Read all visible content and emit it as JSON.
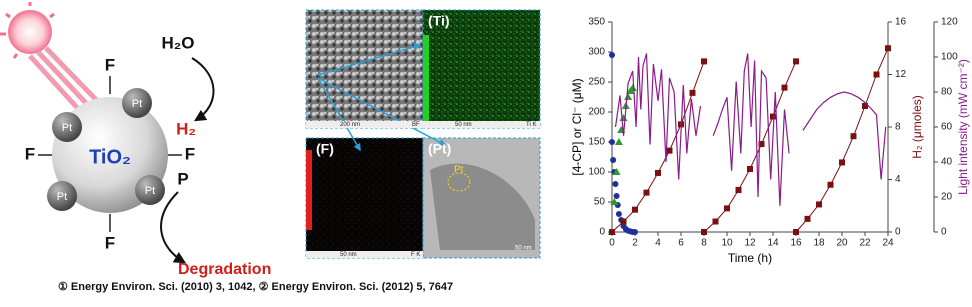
{
  "diagram": {
    "water": "H₂O",
    "hydrogen": "H₂",
    "catalyst": "TiO₂",
    "fluorine": [
      "F",
      "F",
      "F",
      "F"
    ],
    "platinum": [
      "Pt",
      "Pt",
      "Pt",
      "Pt"
    ],
    "pollutant": "P",
    "product": "Degradation"
  },
  "micrographs": {
    "ti_label": "(Ti)",
    "f_label": "(F)",
    "pt_label": "(Pt)",
    "pt_marker": "Pt",
    "bf_scale": "200 nm",
    "bf_tag": "BF",
    "ti_scale": "50 nm",
    "ti_tag": "Ti K",
    "f_scale": "50 nm",
    "f_tag": "F K",
    "pt_scale": "50 nm"
  },
  "chart_data": {
    "type": "line",
    "xlabel": "Time (h)",
    "ylabel": "[4-CP] or Cl⁻ (μM)",
    "y2label": "H₂ (μmoles)",
    "y3label": "Light intensity (mW cm⁻²)",
    "xlim": [
      0,
      24
    ],
    "xticks": [
      0,
      2,
      4,
      6,
      8,
      10,
      12,
      14,
      16,
      18,
      20,
      22,
      24
    ],
    "ylim": [
      0,
      350
    ],
    "yticks": [
      0,
      50,
      100,
      150,
      200,
      250,
      300,
      350
    ],
    "y2lim": [
      0,
      16
    ],
    "y2ticks": [
      0,
      4,
      8,
      12,
      16
    ],
    "y3lim": [
      0,
      120
    ],
    "y3ticks": [
      0,
      20,
      40,
      60,
      80,
      100,
      120
    ],
    "series": [
      {
        "color": "#1f2f9f",
        "marker": "circle",
        "axis": "y",
        "x": [
          0,
          0,
          0.1,
          0.2,
          0.3,
          0.4,
          0.5,
          0.6,
          0.8,
          1,
          1.2,
          1.4,
          1.6,
          1.8,
          2
        ],
        "values": [
          295,
          150,
          120,
          100,
          80,
          60,
          45,
          30,
          20,
          10,
          5,
          2,
          1,
          0,
          0
        ]
      },
      {
        "color": "#2e9a2e",
        "marker": "triangle",
        "axis": "y",
        "x": [
          0,
          0.2,
          0.4,
          0.6,
          0.8,
          1,
          1.2,
          1.4,
          1.6,
          1.8
        ],
        "values": [
          0,
          50,
          100,
          150,
          170,
          190,
          210,
          225,
          235,
          240
        ]
      },
      {
        "color": "#7a1010",
        "marker": "square",
        "axis": "y2",
        "x": [
          0,
          1,
          2,
          3,
          4,
          5,
          6,
          7,
          8,
          8,
          8,
          9,
          10,
          11,
          12,
          13,
          14,
          15,
          16,
          16,
          16,
          17,
          18,
          19,
          20,
          21,
          22,
          23,
          24
        ],
        "values": [
          0,
          0.8,
          1.7,
          3,
          4.5,
          6.2,
          8.2,
          10.6,
          13,
          null,
          0,
          0.8,
          1.8,
          3.2,
          4.8,
          6.7,
          8.8,
          11,
          13,
          null,
          0,
          1,
          2.1,
          3.6,
          5.3,
          7.3,
          9.6,
          12,
          14
        ]
      },
      {
        "color": "#8b1a8b",
        "marker": "none",
        "axis": "y3",
        "x": [
          0.3,
          0.7,
          1.0,
          1.4,
          1.8,
          2.1,
          2.3,
          2.5,
          2.7,
          3.0,
          3.3,
          3.6,
          4.0,
          4.3,
          4.7,
          5.0,
          5.4,
          5.8,
          6.2,
          6.5,
          6.9,
          7.3,
          7.7,
          8,
          8.8,
          9.2,
          9.6,
          10.0,
          10.4,
          10.8,
          11.2,
          11.5,
          11.8,
          12.1,
          12.4,
          12.7,
          13.0,
          13.4,
          13.8,
          14.2,
          14.6,
          15.0,
          15.4,
          16,
          16.6,
          17.2,
          17.8,
          18.4,
          19.0,
          19.6,
          20.2,
          20.8,
          21.4,
          22.0,
          22.6,
          23.0,
          23.4,
          23.8
        ],
        "values": [
          60,
          78,
          55,
          85,
          92,
          60,
          100,
          70,
          95,
          102,
          50,
          96,
          75,
          93,
          40,
          88,
          80,
          30,
          84,
          45,
          76,
          55,
          72,
          null,
          55,
          62,
          70,
          77,
          35,
          86,
          45,
          92,
          102,
          60,
          98,
          20,
          92,
          88,
          30,
          80,
          15,
          70,
          45,
          null,
          58,
          64,
          70,
          74,
          77,
          79,
          80,
          79,
          77,
          74,
          70,
          67,
          30,
          60
        ]
      }
    ]
  },
  "caption": "① Energy Environ. Sci. (2010) 3, 1042,  ② Energy Environ. Sci. (2012) 5, 7647"
}
